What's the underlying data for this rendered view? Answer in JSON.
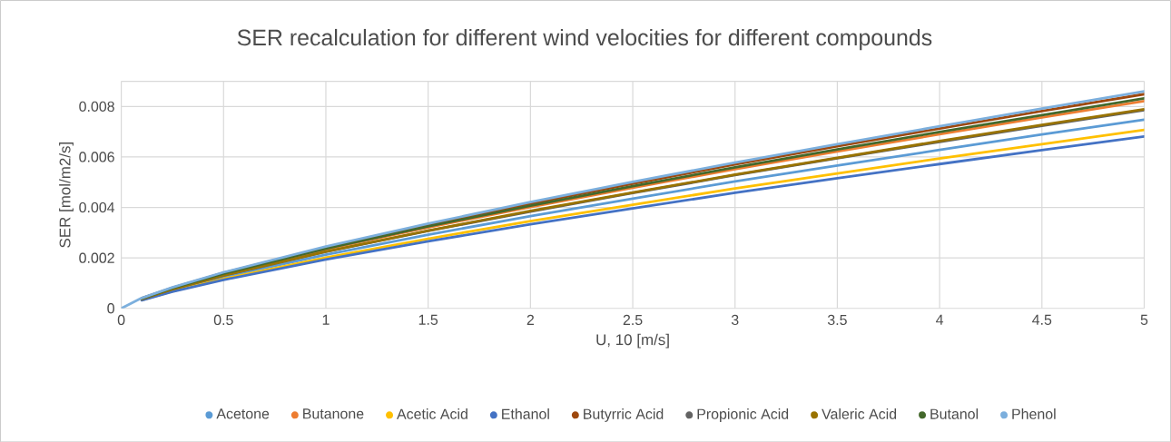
{
  "chart_data": {
    "type": "line",
    "title": "SER recalculation for different wind velocities for different compounds",
    "xlabel": "U, 10 [m/s]",
    "ylabel": "SER [mol/m2/s]",
    "x": [
      0,
      0.1,
      0.25,
      0.5,
      1,
      1.5,
      2,
      2.5,
      3,
      3.5,
      4,
      4.5,
      5
    ],
    "series": [
      {
        "name": "Acetone",
        "color": "#5b9bd5",
        "values": [
          null,
          0.00035,
          0.00072,
          0.00124,
          0.00213,
          0.00292,
          0.00366,
          0.00435,
          0.00503,
          0.00566,
          0.00628,
          0.00689,
          0.00748
        ]
      },
      {
        "name": "Butanone",
        "color": "#ed7d31",
        "values": [
          null,
          null,
          null,
          0.00136,
          0.00234,
          0.00321,
          0.00402,
          0.00478,
          0.00552,
          0.00622,
          0.0069,
          0.00757,
          0.00822
        ]
      },
      {
        "name": "Acetic Acid",
        "color": "#ffc000",
        "values": [
          null,
          0.00033,
          0.00068,
          0.00117,
          0.00201,
          0.00276,
          0.00346,
          0.00411,
          0.00475,
          0.00535,
          0.00594,
          0.00651,
          0.00707
        ]
      },
      {
        "name": "Ethanol",
        "color": "#4472c4",
        "values": [
          null,
          0.00032,
          0.00066,
          0.00113,
          0.00194,
          0.00266,
          0.00333,
          0.00396,
          0.00458,
          0.00516,
          0.00572,
          0.00627,
          0.00681
        ]
      },
      {
        "name": "Butyrric Acid",
        "color": "#9e480e",
        "values": [
          null,
          0.0004,
          0.00082,
          0.00141,
          0.00242,
          0.00332,
          0.00415,
          0.00494,
          0.00571,
          0.00643,
          0.00713,
          0.00782,
          0.00849
        ]
      },
      {
        "name": "Propionic Acid",
        "color": "#636363",
        "values": [
          null,
          0.00037,
          0.00076,
          0.0013,
          0.00224,
          0.00307,
          0.00384,
          0.00457,
          0.00528,
          0.00595,
          0.0066,
          0.00724,
          0.00786
        ]
      },
      {
        "name": "Valeric Acid",
        "color": "#997300",
        "values": [
          null,
          0.00037,
          0.00076,
          0.00131,
          0.00225,
          0.00308,
          0.00386,
          0.00459,
          0.0053,
          0.00597,
          0.00663,
          0.00727,
          0.00789
        ]
      },
      {
        "name": "Butanol",
        "color": "#43682b",
        "values": [
          null,
          0.00039,
          0.0008,
          0.00138,
          0.00237,
          0.00325,
          0.00407,
          0.00484,
          0.00559,
          0.0063,
          0.00699,
          0.00766,
          0.00832
        ]
      },
      {
        "name": "Phenol",
        "color": "#7cafdd",
        "values": [
          0,
          0.00041,
          0.00083,
          0.00143,
          0.00245,
          0.00336,
          0.00421,
          0.00501,
          0.00578,
          0.00651,
          0.00722,
          0.00792,
          0.0086
        ]
      }
    ],
    "xlim": [
      0,
      5
    ],
    "xticks": [
      0,
      0.5,
      1,
      1.5,
      2,
      2.5,
      3,
      3.5,
      4,
      4.5,
      5
    ],
    "ylim": [
      0,
      0.009
    ],
    "yticks": [
      0,
      0.002,
      0.004,
      0.006,
      0.008,
      {
        "value": 0.009,
        "label": null
      }
    ],
    "grid": true,
    "legend": "bottom"
  }
}
